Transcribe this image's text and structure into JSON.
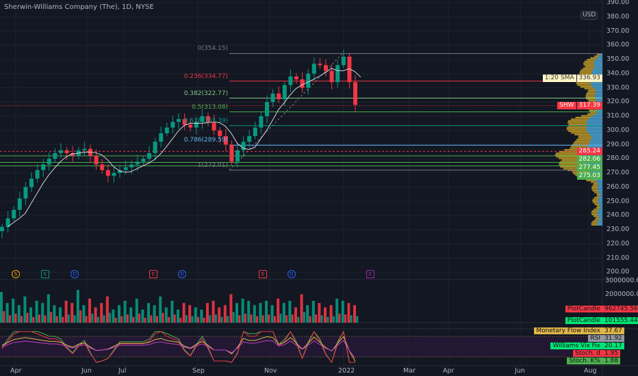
{
  "header": {
    "title": "Sherwin-Williams Company (The), 1D, NYSE",
    "currency": "USD"
  },
  "colors": {
    "up": "#089981",
    "down": "#f23645",
    "bg": "#131722",
    "sma": "#d1d4dc",
    "profile_up": "#2196f3",
    "profile_down": "#c9a227"
  },
  "price_axis": {
    "ticks": [
      "390.00",
      "380.00",
      "370.00",
      "360.00",
      "350.00",
      "340.00",
      "330.00",
      "320.00",
      "310.00",
      "300.00",
      "290.00",
      "280.00",
      "270.00",
      "260.00",
      "250.00",
      "240.00",
      "230.00",
      "220.00",
      "210.00",
      "200.00"
    ]
  },
  "volume_axis": {
    "ticks": [
      "3000000.00",
      "2000000.00"
    ]
  },
  "time_axis": {
    "labels": [
      "Apr",
      "Jun",
      "Jul",
      "Sep",
      "Nov",
      "2022",
      "Mar",
      "Apr",
      "Jun",
      "Aug"
    ]
  },
  "price_labels": {
    "sma": {
      "name": "1:20 SMA",
      "value": "336.93"
    },
    "last": {
      "name": "SHW",
      "value": "317.39"
    },
    "levels": [
      {
        "value": "285.24",
        "color": "#f23645"
      },
      {
        "value": "282.06",
        "color": "#4caf50"
      },
      {
        "value": "277.45",
        "color": "#4caf50"
      },
      {
        "value": "275.03",
        "color": "#4caf50"
      }
    ]
  },
  "fib": [
    {
      "label": "0(354.15)",
      "price": 354.15,
      "color": "#787b86"
    },
    {
      "label": "0.236(334.77)",
      "price": 334.77,
      "color": "#f23645"
    },
    {
      "label": "0.382(322.77)",
      "price": 322.77,
      "color": "#81c784"
    },
    {
      "label": "0.5(313.08)",
      "price": 313.08,
      "color": "#4caf50"
    },
    {
      "label": "0.618(303.39)",
      "price": 303.39,
      "color": "#089981"
    },
    {
      "label": "0.786(289.59)",
      "price": 289.59,
      "color": "#64b5f6"
    },
    {
      "label": "1(272.01)",
      "price": 272.01,
      "color": "#787b86"
    }
  ],
  "events": [
    {
      "type": "S",
      "color": "#f7a600"
    },
    {
      "type": "E",
      "color": "#089981"
    },
    {
      "type": "D",
      "color": "#2962ff"
    },
    {
      "type": "E",
      "color": "#f23645"
    },
    {
      "type": "D",
      "color": "#2962ff"
    },
    {
      "type": "E",
      "color": "#f23645"
    },
    {
      "type": "D",
      "color": "#2962ff"
    },
    {
      "type": "E",
      "color": "#9c27b0"
    }
  ],
  "indicators": [
    {
      "name": "PlotCandle",
      "value": "962745.56",
      "color": "#f23645"
    },
    {
      "name": "PlotCandle",
      "value": "101555.44",
      "color": "#00e676"
    },
    {
      "name": "Monetary Flow Index",
      "value": "37.67",
      "color": "#e0b64a"
    },
    {
      "name": "RSI",
      "value": "31.92",
      "color": "#9598a1"
    },
    {
      "name": "Williams Vix Fix",
      "value": "20.17",
      "color": "#00e676"
    },
    {
      "name": "Stoch. d",
      "value": "1.95",
      "color": "#f23645"
    },
    {
      "name": "Stoch. K%",
      "value": "1.88",
      "color": "#4caf50"
    }
  ],
  "chart_data": {
    "type": "candlestick",
    "closes": [
      232,
      238,
      244,
      252,
      260,
      266,
      272,
      276,
      280,
      284,
      286,
      284,
      282,
      286,
      287,
      282,
      276,
      272,
      268,
      270,
      272,
      274,
      276,
      278,
      280,
      284,
      292,
      298,
      302,
      306,
      308,
      304,
      302,
      306,
      310,
      306,
      300,
      296,
      290,
      278,
      286,
      292,
      296,
      302,
      310,
      320,
      326,
      322,
      332,
      338,
      336,
      330,
      340,
      347,
      346,
      342,
      334,
      346,
      352,
      334,
      318
    ],
    "volume_millions": [
      1.4,
      0.9,
      1.1,
      0.8,
      1.2,
      0.7,
      1.0,
      0.9,
      1.3,
      0.8,
      0.7,
      1.0,
      0.9,
      1.5,
      0.8,
      1.1,
      0.7,
      0.9,
      1.2,
      0.6,
      0.8,
      1.0,
      0.7,
      1.1,
      0.6,
      0.9,
      0.8,
      1.2,
      0.7,
      1.0,
      0.6,
      0.9,
      0.8,
      0.7,
      0.6,
      0.9,
      1.0,
      0.7,
      0.8,
      1.3,
      0.9,
      1.1,
      1.0,
      0.8,
      0.9,
      1.0,
      0.8,
      1.1,
      0.9,
      1.0,
      0.7,
      1.3,
      0.8,
      1.0,
      0.9,
      0.7,
      0.8,
      1.1,
      1.0,
      0.9,
      0.8
    ]
  }
}
